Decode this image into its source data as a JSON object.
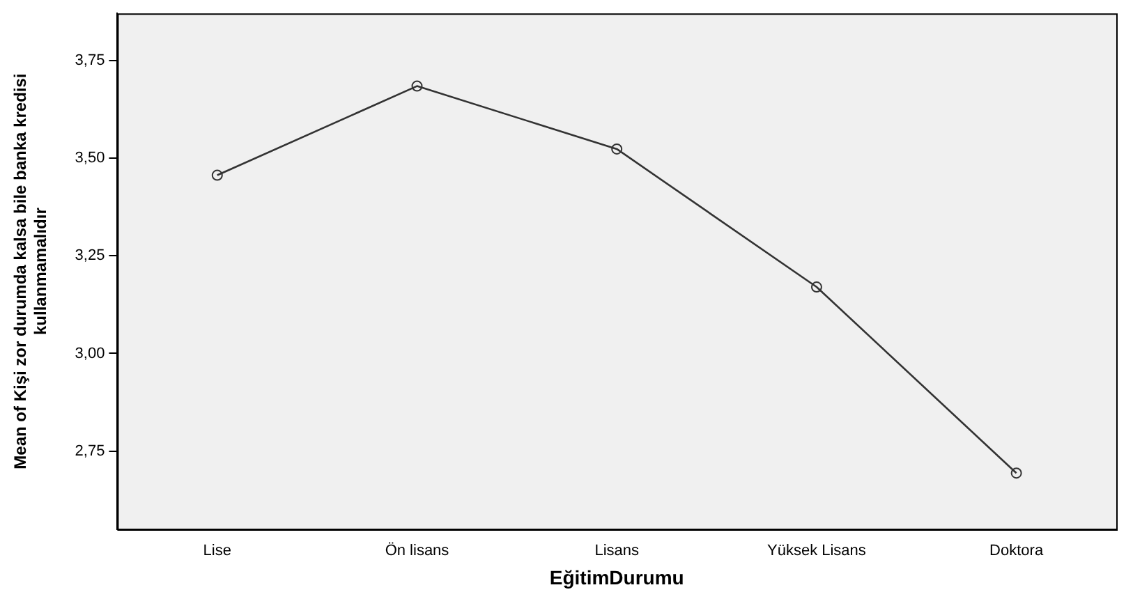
{
  "chart_data": {
    "type": "line",
    "xlabel": "EğitimDurumu",
    "ylabel": "Mean of Kişi zor durumda kalsa bile banka kredisi\nkullanmamalıdır",
    "categories": [
      "Lise",
      "Ön lisans",
      "Lisans",
      "Yüksek Lisans",
      "Doktora"
    ],
    "series": [
      {
        "color": "#333333",
        "values": [
          3.456,
          3.684,
          3.523,
          3.17,
          2.694
        ]
      }
    ],
    "ylim": [
      2.55,
      3.87
    ],
    "yticks": [
      {
        "value": 2.75,
        "label": "2,75"
      },
      {
        "value": 3.0,
        "label": "3,00"
      },
      {
        "value": 3.25,
        "label": "3,25"
      },
      {
        "value": 3.5,
        "label": "3,50"
      },
      {
        "value": 3.75,
        "label": "3,75"
      }
    ],
    "grid": false,
    "legend": false,
    "marker": "circle",
    "line_style": "solid"
  }
}
